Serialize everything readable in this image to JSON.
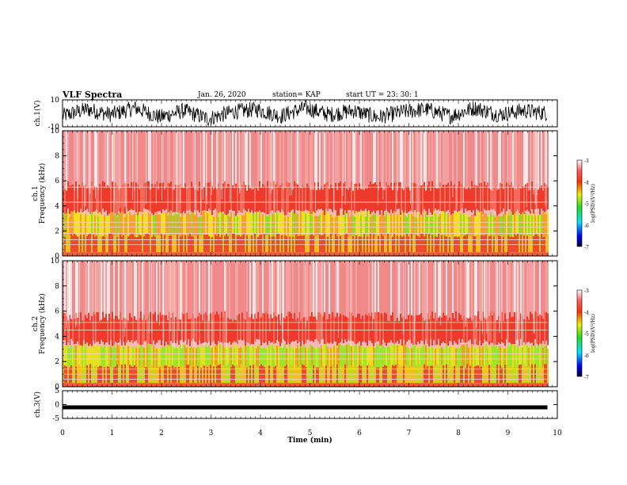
{
  "header": {
    "title": "VLF Spectra",
    "date": "Jan. 26, 2020",
    "station": "station= KAP",
    "start_ut": "start  UT  =   23: 30: 1"
  },
  "chart_data": [
    {
      "type": "line",
      "panel": "ch1-waveform",
      "ylabel": "ch.1(V)",
      "ylim": [
        -10,
        10
      ],
      "y_ticks": [
        "10",
        "-10"
      ],
      "x": [
        0,
        0.5,
        1,
        1.5,
        2,
        2.5,
        3,
        3.5,
        4,
        4.5,
        5,
        5.5,
        6,
        6.5,
        7,
        7.5,
        8,
        8.5,
        9,
        9.5,
        9.8
      ],
      "y": [
        -2,
        3,
        -1,
        4,
        -3,
        2,
        -4,
        1,
        3,
        -2,
        4,
        -1,
        2,
        -3,
        1,
        3,
        -2,
        4,
        -1,
        2,
        0
      ],
      "color": "#000000"
    },
    {
      "type": "heatmap",
      "panel": "ch1-spectrogram",
      "ylabel": "ch.1\nFrequency  (kHz)",
      "ylim": [
        0,
        10
      ],
      "y_ticks": [
        "0",
        "2",
        "4",
        "6",
        "8",
        "10"
      ],
      "xlim": [
        0,
        10
      ],
      "data_extent_min": 9.8,
      "colorbar_label": "log(PSD)(V²/Hz)",
      "colorbar_ticks": [
        "-3",
        "-4",
        "-5",
        "-6",
        "-7"
      ]
    },
    {
      "type": "heatmap",
      "panel": "ch2-spectrogram",
      "ylabel": "ch.2\nFrequency  (kHz)",
      "ylim": [
        0,
        10
      ],
      "y_ticks": [
        "0",
        "2",
        "4",
        "6",
        "8",
        "10"
      ],
      "xlim": [
        0,
        10
      ],
      "data_extent_min": 9.8,
      "colorbar_label": "log(PSD)(V²/Hz)",
      "colorbar_ticks": [
        "-3",
        "-4",
        "-5",
        "-6",
        "-7"
      ]
    },
    {
      "type": "line",
      "panel": "ch3-waveform",
      "ylabel": "ch.3(V)",
      "ylim": [
        -5,
        5
      ],
      "y_ticks": [
        "5",
        "0",
        "-5"
      ],
      "x": [
        0,
        9.8
      ],
      "y": [
        -1,
        -1
      ],
      "color": "#000000"
    }
  ],
  "xaxis": {
    "label": "Time  (min)",
    "ticks": [
      "0",
      "1",
      "2",
      "3",
      "4",
      "5",
      "6",
      "7",
      "8",
      "9",
      "10"
    ]
  }
}
